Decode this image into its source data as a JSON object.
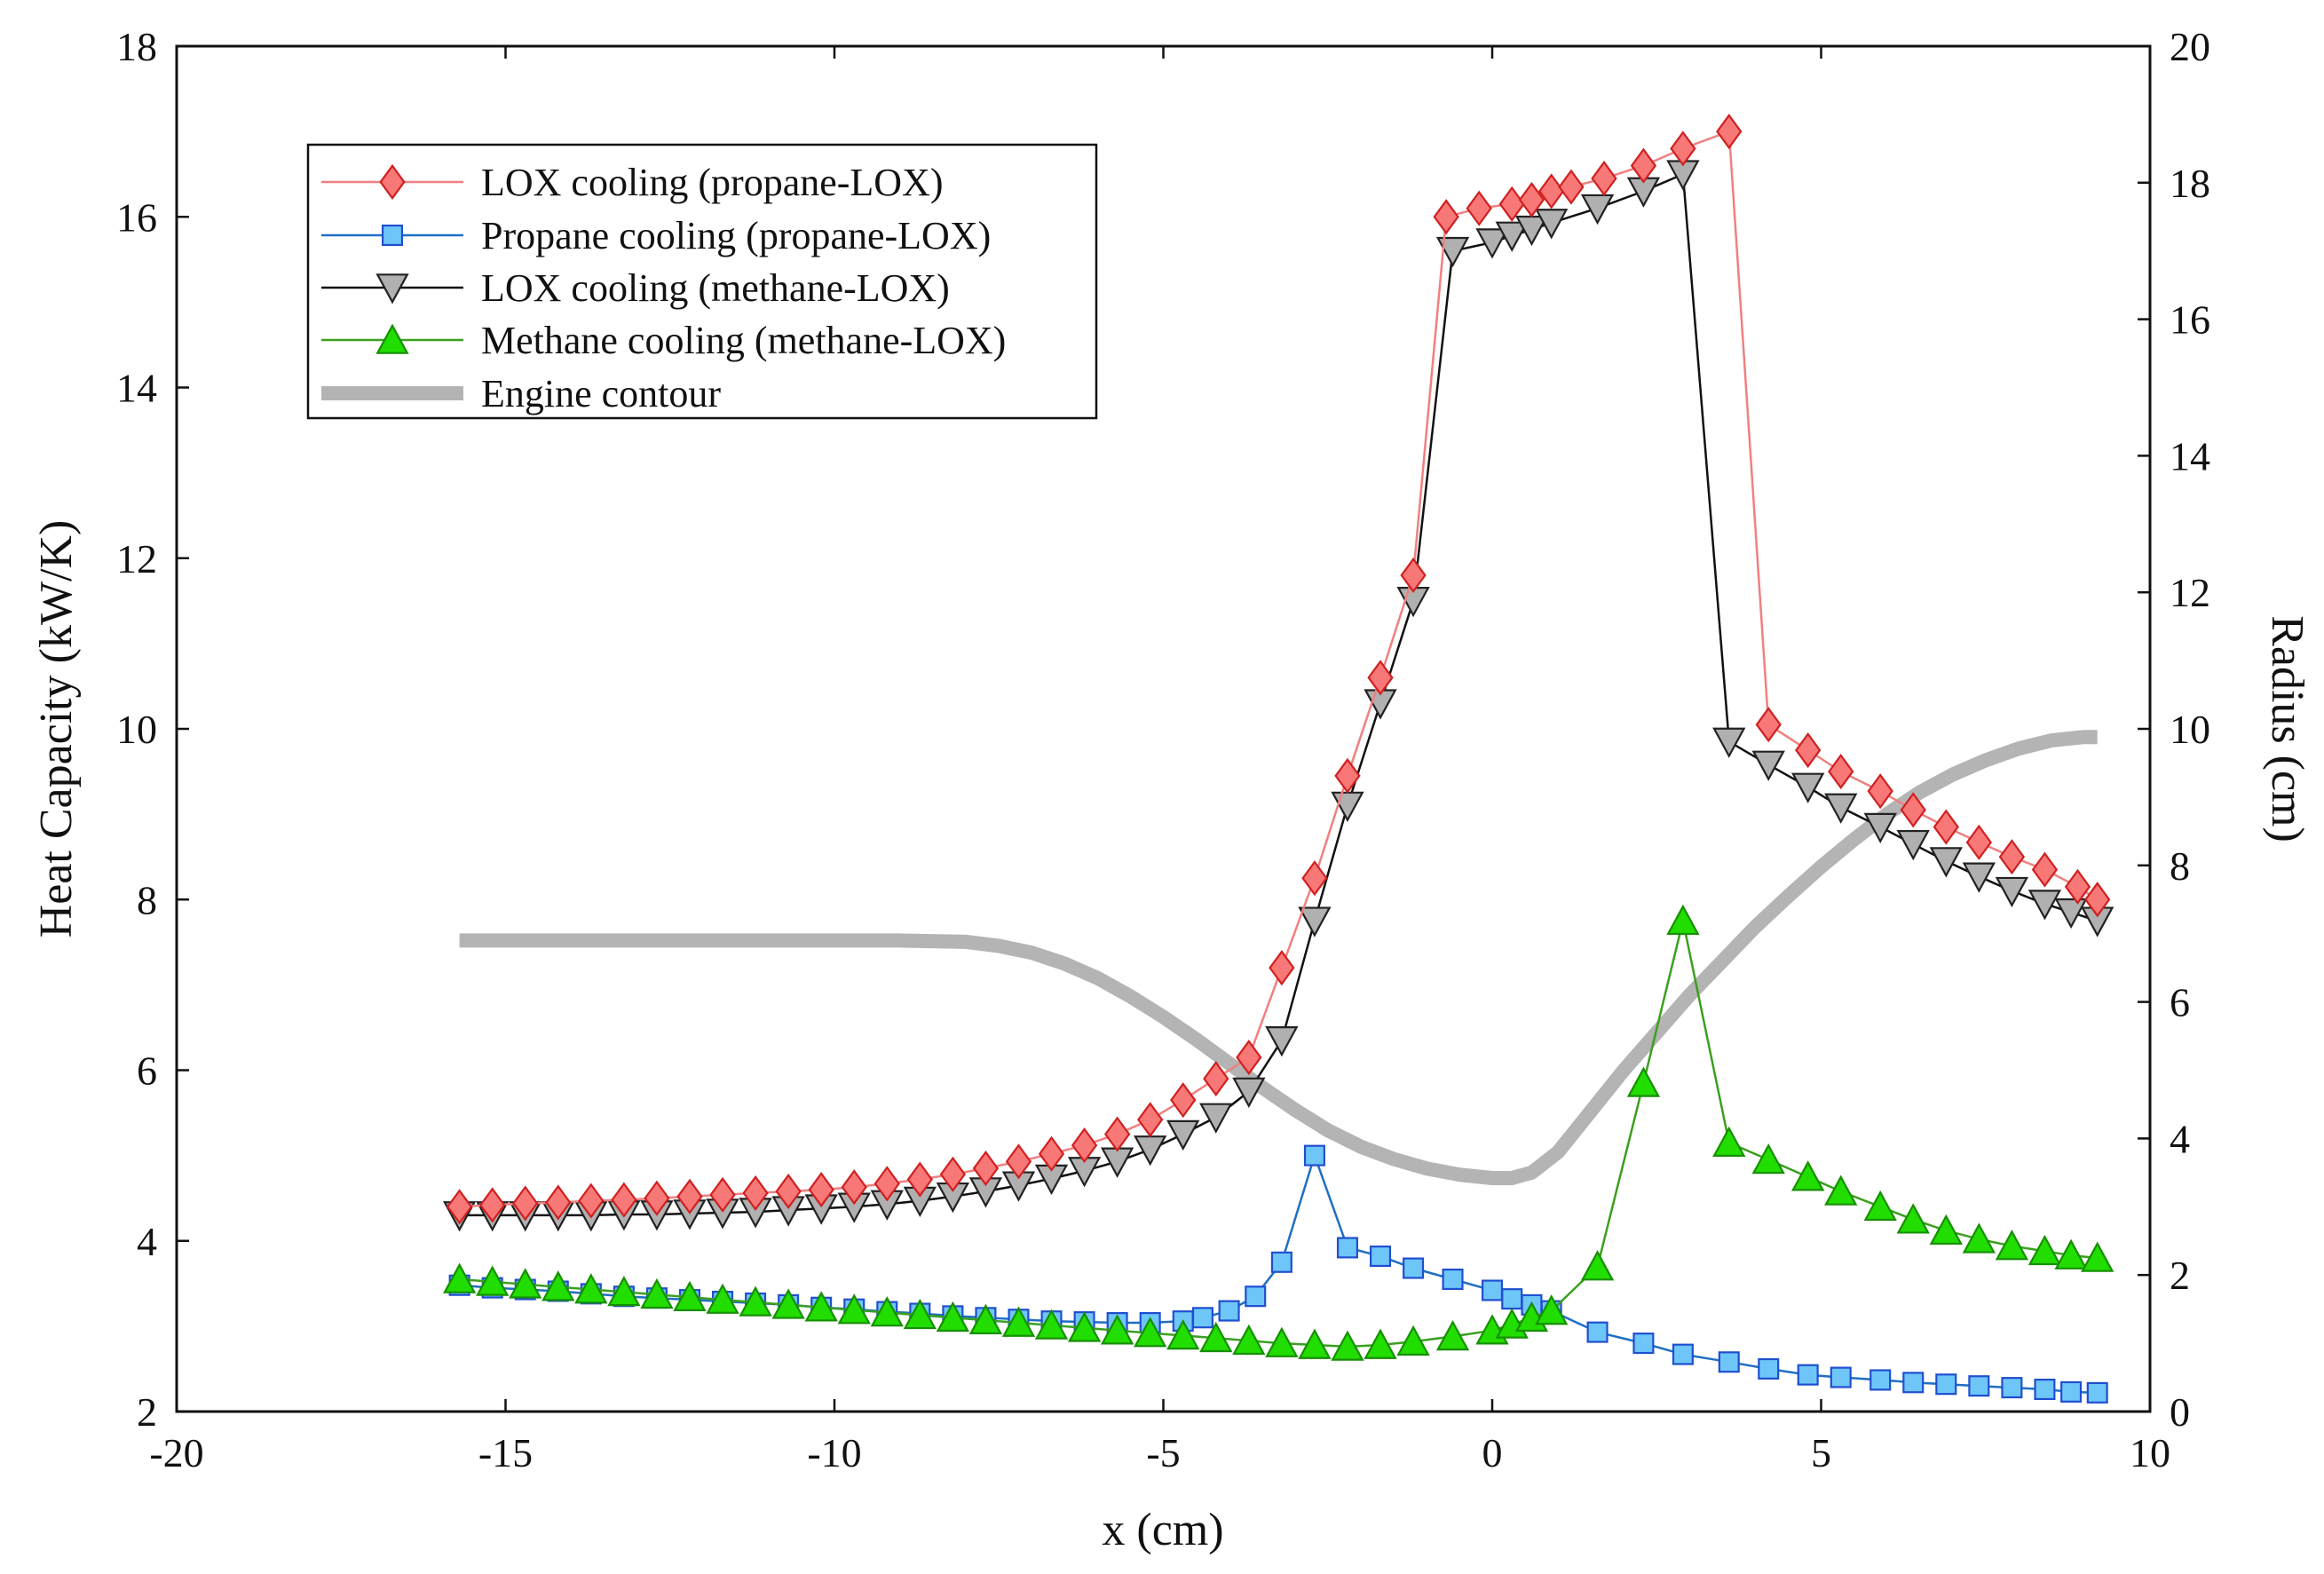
{
  "chart_data": {
    "type": "line",
    "title": "",
    "xlabel": "x (cm)",
    "ylabel": "Heat Capacity (kW/K)",
    "y2label": "Radius (cm)",
    "xlim": [
      -20,
      10
    ],
    "ylim": [
      2,
      18
    ],
    "y2lim": [
      0,
      20
    ],
    "xticks": [
      -20,
      -15,
      -10,
      -5,
      0,
      5,
      10
    ],
    "yticks": [
      2,
      4,
      6,
      8,
      10,
      12,
      14,
      16,
      18
    ],
    "y2ticks": [
      0,
      2,
      4,
      6,
      8,
      10,
      12,
      14,
      16,
      18,
      20
    ],
    "legend_position": "top-left",
    "series": [
      {
        "name": "LOX cooling (propane-LOX)",
        "marker": "diamond",
        "line_color": "#f08080",
        "marker_fill": "#f87878",
        "marker_stroke": "#d02020",
        "x": [
          -15.7,
          -15.2,
          -14.7,
          -14.2,
          -13.7,
          -13.2,
          -12.7,
          -12.2,
          -11.7,
          -11.2,
          -10.7,
          -10.2,
          -9.7,
          -9.2,
          -8.7,
          -8.2,
          -7.7,
          -7.2,
          -6.7,
          -6.2,
          -5.7,
          -5.2,
          -4.7,
          -4.2,
          -3.7,
          -3.2,
          -2.7,
          -2.2,
          -1.7,
          -1.2,
          -0.7,
          -0.2,
          0.3,
          0.6,
          0.9,
          1.2,
          1.7,
          2.3,
          2.9,
          3.6,
          4.2,
          4.8,
          5.3,
          5.9,
          6.4,
          6.9,
          7.4,
          7.9,
          8.4,
          8.9,
          9.2
        ],
        "y": [
          4.4,
          4.42,
          4.44,
          4.45,
          4.47,
          4.48,
          4.5,
          4.52,
          4.54,
          4.56,
          4.58,
          4.6,
          4.63,
          4.67,
          4.72,
          4.78,
          4.85,
          4.93,
          5.02,
          5.12,
          5.25,
          5.42,
          5.65,
          5.9,
          6.15,
          7.2,
          8.25,
          9.45,
          10.6,
          11.8,
          16.0,
          16.1,
          16.15,
          16.2,
          16.3,
          16.35,
          16.45,
          16.6,
          16.8,
          17.0,
          10.05,
          9.75,
          9.5,
          9.27,
          9.05,
          8.85,
          8.67,
          8.5,
          8.35,
          8.15,
          8.0
        ],
        "y_aligned_note": ""
      },
      {
        "name": "Propane cooling (propane-LOX)",
        "marker": "square",
        "line_color": "#1f6fc4",
        "marker_fill": "#6ec6f8",
        "marker_stroke": "#1f4fd0",
        "x": [
          -15.7,
          -15.2,
          -14.7,
          -14.2,
          -13.7,
          -13.2,
          -12.7,
          -12.2,
          -11.7,
          -11.2,
          -10.7,
          -10.2,
          -9.7,
          -9.2,
          -8.7,
          -8.2,
          -7.7,
          -7.2,
          -6.7,
          -6.2,
          -5.7,
          -5.2,
          -4.7,
          -4.4,
          -4.0,
          -3.6,
          -3.2,
          -2.7,
          -2.2,
          -1.7,
          -1.2,
          -0.6,
          0.0,
          0.3,
          0.6,
          0.9,
          1.6,
          2.3,
          2.9,
          3.6,
          4.2,
          4.8,
          5.3,
          5.9,
          6.4,
          6.9,
          7.4,
          7.9,
          8.4,
          8.8,
          9.2
        ],
        "y": [
          3.48,
          3.45,
          3.43,
          3.41,
          3.38,
          3.35,
          3.33,
          3.31,
          3.29,
          3.27,
          3.25,
          3.22,
          3.2,
          3.17,
          3.15,
          3.12,
          3.1,
          3.08,
          3.06,
          3.05,
          3.04,
          3.04,
          3.06,
          3.1,
          3.18,
          3.35,
          3.75,
          5.0,
          3.92,
          3.82,
          3.68,
          3.55,
          3.42,
          3.32,
          3.25,
          3.18,
          2.93,
          2.8,
          2.67,
          2.58,
          2.5,
          2.43,
          2.4,
          2.37,
          2.34,
          2.32,
          2.3,
          2.28,
          2.26,
          2.23,
          2.22
        ]
      },
      {
        "name": "LOX cooling (methane-LOX)",
        "marker": "triangle-down",
        "line_color": "#111111",
        "marker_fill": "#b0b0b0",
        "marker_stroke": "#222222",
        "x": [
          -15.7,
          -15.2,
          -14.7,
          -14.2,
          -13.7,
          -13.2,
          -12.7,
          -12.2,
          -11.7,
          -11.2,
          -10.7,
          -10.2,
          -9.7,
          -9.2,
          -8.7,
          -8.2,
          -7.7,
          -7.2,
          -6.7,
          -6.2,
          -5.7,
          -5.2,
          -4.7,
          -4.2,
          -3.7,
          -3.2,
          -2.7,
          -2.2,
          -1.7,
          -1.2,
          -0.6,
          0.0,
          0.3,
          0.6,
          0.9,
          1.6,
          2.3,
          2.9,
          3.6,
          4.2,
          4.8,
          5.3,
          5.9,
          6.4,
          6.9,
          7.4,
          7.9,
          8.4,
          8.8,
          9.2
        ],
        "y": [
          4.3,
          4.3,
          4.3,
          4.3,
          4.3,
          4.31,
          4.31,
          4.32,
          4.33,
          4.34,
          4.36,
          4.38,
          4.4,
          4.43,
          4.47,
          4.52,
          4.58,
          4.65,
          4.73,
          4.82,
          4.93,
          5.07,
          5.25,
          5.45,
          5.75,
          6.35,
          7.75,
          9.1,
          10.3,
          11.5,
          15.6,
          15.7,
          15.78,
          15.85,
          15.93,
          16.1,
          16.3,
          16.5,
          9.85,
          9.58,
          9.32,
          9.08,
          8.85,
          8.65,
          8.45,
          8.27,
          8.1,
          7.95,
          7.85,
          7.75
        ]
      },
      {
        "name": "Methane cooling (methane-LOX)",
        "marker": "triangle-up",
        "line_color": "#3aa020",
        "marker_fill": "#22dd00",
        "marker_stroke": "#159000",
        "x": [
          -15.7,
          -15.2,
          -14.7,
          -14.2,
          -13.7,
          -13.2,
          -12.7,
          -12.2,
          -11.7,
          -11.2,
          -10.7,
          -10.2,
          -9.7,
          -9.2,
          -8.7,
          -8.2,
          -7.7,
          -7.2,
          -6.7,
          -6.2,
          -5.7,
          -5.2,
          -4.7,
          -4.2,
          -3.7,
          -3.2,
          -2.7,
          -2.2,
          -1.7,
          -1.2,
          -0.6,
          0.0,
          0.3,
          0.6,
          0.9,
          1.6,
          2.3,
          2.9,
          3.6,
          4.2,
          4.8,
          5.3,
          5.9,
          6.4,
          6.9,
          7.4,
          7.9,
          8.4,
          8.8,
          9.2
        ],
        "y": [
          3.55,
          3.52,
          3.49,
          3.46,
          3.43,
          3.4,
          3.37,
          3.34,
          3.31,
          3.28,
          3.25,
          3.22,
          3.19,
          3.16,
          3.13,
          3.1,
          3.07,
          3.04,
          3.01,
          2.98,
          2.95,
          2.92,
          2.89,
          2.86,
          2.83,
          2.8,
          2.78,
          2.76,
          2.78,
          2.82,
          2.88,
          2.95,
          3.02,
          3.1,
          3.18,
          3.7,
          5.85,
          7.75,
          5.15,
          4.95,
          4.75,
          4.58,
          4.4,
          4.25,
          4.12,
          4.02,
          3.94,
          3.88,
          3.83,
          3.8
        ]
      },
      {
        "name": "Engine contour",
        "marker": "none",
        "line_color": "#b4b4b4",
        "axis": "right",
        "x": [
          -15.7,
          -15.0,
          -14.0,
          -13.0,
          -12.0,
          -11.0,
          -10.0,
          -9.0,
          -8.0,
          -7.5,
          -7.0,
          -6.5,
          -6.0,
          -5.5,
          -5.0,
          -4.5,
          -4.0,
          -3.5,
          -3.0,
          -2.5,
          -2.0,
          -1.5,
          -1.0,
          -0.5,
          0.0,
          0.3,
          0.6,
          1.0,
          1.5,
          2.0,
          2.5,
          3.0,
          3.5,
          4.0,
          4.5,
          5.0,
          5.5,
          6.0,
          6.5,
          7.0,
          7.5,
          8.0,
          8.5,
          9.0,
          9.2
        ],
        "y": [
          6.9,
          6.9,
          6.9,
          6.9,
          6.9,
          6.9,
          6.9,
          6.9,
          6.88,
          6.82,
          6.72,
          6.56,
          6.35,
          6.08,
          5.78,
          5.45,
          5.1,
          4.75,
          4.42,
          4.12,
          3.88,
          3.7,
          3.56,
          3.47,
          3.42,
          3.42,
          3.5,
          3.8,
          4.4,
          5.0,
          5.55,
          6.1,
          6.6,
          7.1,
          7.55,
          7.98,
          8.38,
          8.75,
          9.07,
          9.33,
          9.54,
          9.71,
          9.83,
          9.88,
          9.88
        ]
      }
    ]
  }
}
